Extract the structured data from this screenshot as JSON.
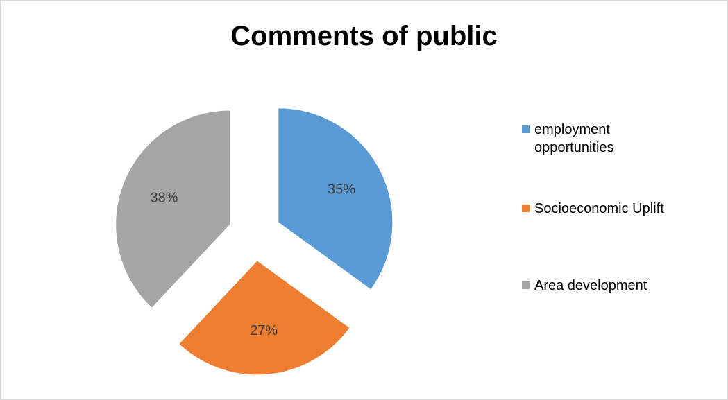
{
  "chart_data": {
    "type": "pie",
    "title": "Comments of public",
    "exploded": true,
    "slices": [
      {
        "label": "employment opportunities",
        "value": 35,
        "display": "35%",
        "color": "#5b9bd5"
      },
      {
        "label": "Socioeconomic Uplift",
        "value": 27,
        "display": "27%",
        "color": "#ed7d31"
      },
      {
        "label": "Area development",
        "value": 38,
        "display": "38%",
        "color": "#a5a5a5"
      }
    ],
    "legend": {
      "placement": "right",
      "entries": [
        {
          "label": "employment opportunities",
          "color": "#5b9bd5"
        },
        {
          "label": "Socioeconomic Uplift",
          "color": "#ed7d31"
        },
        {
          "label": "Area development",
          "color": "#a5a5a5"
        }
      ]
    }
  }
}
